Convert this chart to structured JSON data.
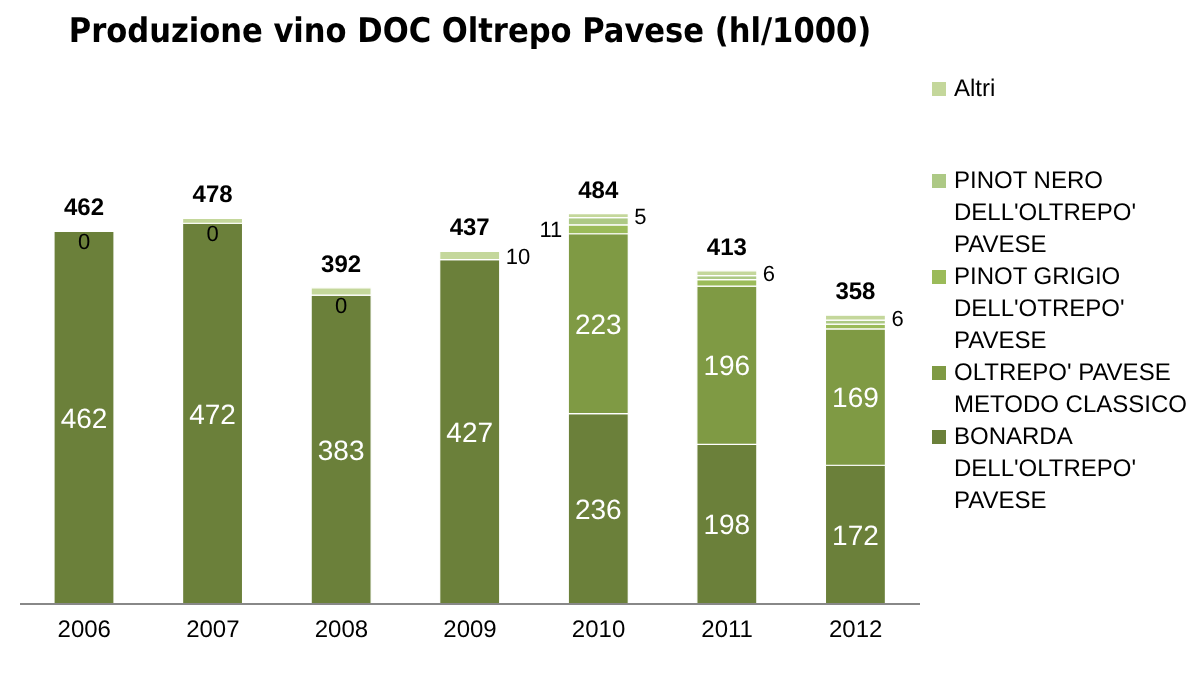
{
  "chart_data": {
    "type": "bar",
    "title": "Produzione vino DOC Oltrepo Pavese (hl/1000)",
    "categories": [
      "2006",
      "2007",
      "2008",
      "2009",
      "2010",
      "2011",
      "2012"
    ],
    "stacked": true,
    "legend": "right",
    "series": [
      {
        "name": "BONARDA DELL'OLTREPO' PAVESE",
        "color": "#6b803a",
        "values": [
          462,
          472,
          383,
          427,
          236,
          198,
          172
        ],
        "value_labels": [
          "462",
          "472",
          "383",
          "427",
          "236",
          "198",
          "172"
        ]
      },
      {
        "name": "OLTREPO' PAVESE METODO CLASSICO",
        "color": "#7f9a44",
        "values": [
          0,
          0,
          0,
          0,
          223,
          196,
          169
        ],
        "value_labels": [
          "0",
          "0",
          "0",
          null,
          "223",
          "196",
          "169"
        ]
      },
      {
        "name": "PINOT GRIGIO DELL'OTREPO' PAVESE",
        "color": "#9bbb59",
        "values": [
          0,
          0,
          0,
          0,
          11,
          8,
          6
        ],
        "value_labels": [
          null,
          null,
          null,
          null,
          "11",
          null,
          null
        ]
      },
      {
        "name": "PINOT NERO DELL'OLTREPO' PAVESE",
        "color": "#adc985",
        "values": [
          0,
          0,
          0,
          0,
          9,
          5,
          5
        ]
      },
      {
        "name": "Altri",
        "color": "#c4d79b",
        "values": [
          0,
          6,
          9,
          10,
          5,
          6,
          6
        ],
        "value_labels": [
          null,
          null,
          null,
          "10",
          "5",
          "6",
          "6"
        ]
      }
    ],
    "totals": [
      "462",
      "478",
      "392",
      "437",
      "484",
      "413",
      "358"
    ]
  }
}
